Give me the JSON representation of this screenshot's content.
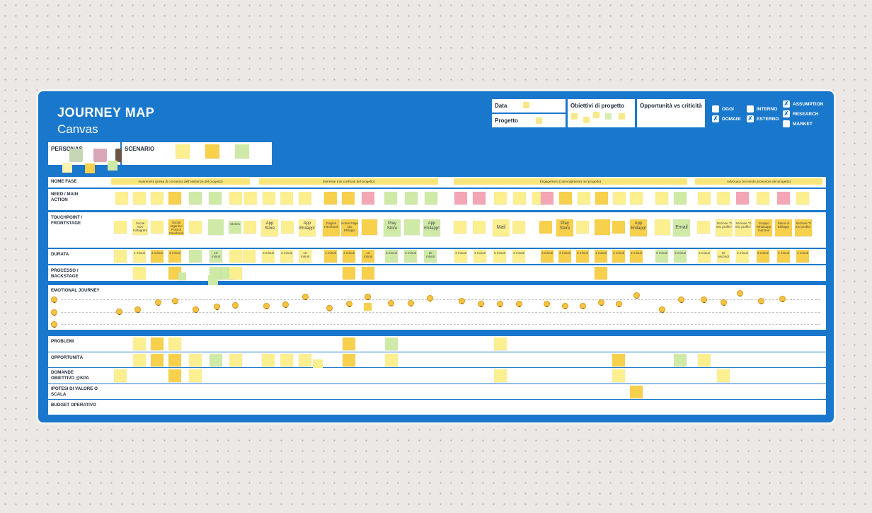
{
  "title": {
    "line1": "JOURNEY MAP",
    "line2": "Canvas"
  },
  "header": {
    "data_label": "Data",
    "progetto_label": "Progetto",
    "obiettivi_label": "Obiettivi di progetto",
    "opportunita_label": "Opportunità vs criticità"
  },
  "checks": [
    {
      "label": "OGGI",
      "checked": false
    },
    {
      "label": "DOMANI",
      "checked": true
    },
    {
      "label": "INTERNO",
      "checked": false
    },
    {
      "label": "ESTERNO",
      "checked": true
    },
    {
      "label": "ASSUMPTION",
      "checked": true
    },
    {
      "label": "RESEARCH",
      "checked": true
    },
    {
      "label": "MARKET",
      "checked": false
    }
  ],
  "personas_label": "PERSONAS",
  "scenario_label": "SCENARIO",
  "rows": {
    "nome_fase": "NOME FASE",
    "need": "NEED / MAIN ACTION",
    "touchpoint": "TOUCHPOINT / FRONTSTAGE",
    "durata": "DURATA",
    "processo": "PROCESSO / BACKSTAGE",
    "emotional": "EMOTIONAL JOURNEY",
    "problemi": "PROBLEMI",
    "opportunita": "OPPORTUNITÀ",
    "domande": "DOMANDE OBIETTIVO @KPA",
    "ipotesi": "IPOTESI DI VALORE O SCALA",
    "budget": "BUDGET OPERATIVO"
  },
  "phases": [
    "Awareness (presa di coscienza dell'esistenza del progetto)",
    "Interesse (nei confronti del progetto)",
    "Engagement (coinvolgimento nel progetto)",
    "Advocacy (mi rendo promotore del progetto)"
  ],
  "touchpoints": [
    "Social ADV Instagram",
    "Social organico Post di Facebook",
    "Stories",
    "App Store",
    "App Ehilapp!",
    "Pagina Facebook",
    "Home Page sito Ehilapp!",
    "Play Store",
    "App Ehilapp!",
    "Mail",
    "Play Store",
    "App Ehilapp!",
    "Email",
    "Sezione \"Il mio profilo\"",
    "Sezione \"Il mio profilo\"",
    "Gruppo Whatsapp mamme",
    "Menu di Ehilapp!",
    "Sezione \"Il mio profilo\""
  ],
  "durations": [
    "1 minuti",
    "2 minuti",
    "2 minuti",
    "10 minuti",
    "3 minuti",
    "2 minuti",
    "10 minuti",
    "1 minuti",
    "3 minuti",
    "10 minuti",
    "6 minuti",
    "2 minuti",
    "10 minuti",
    "3 minuti",
    "2 minuti",
    "5 minuti",
    "2 minuti",
    "3 minuti",
    "3 minuti",
    "2 minuti",
    "1 minuti",
    "2 minuti",
    "2 minuti",
    "5 minuti",
    "5 minuti",
    "2 minuti",
    "10 secondi",
    "2 minuti",
    "5 minuti",
    "2 minuti",
    "2 minuti"
  ],
  "colors": {
    "board": "#1a78cc",
    "sticky_yellow": "#fbef8f",
    "sticky_dark": "#f7d04c",
    "sticky_green": "#cfeaa6",
    "sticky_pink": "#f3a6b5"
  }
}
